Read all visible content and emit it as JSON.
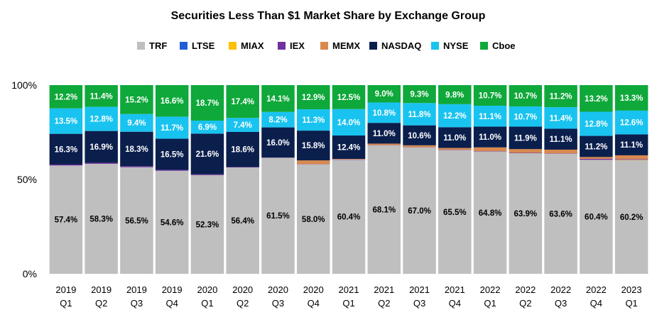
{
  "chart_data": {
    "type": "bar",
    "stacked": true,
    "title": "Securities Less Than $1 Market Share by Exchange Group",
    "xlabel": "",
    "ylabel": "",
    "ylim": [
      0,
      100
    ],
    "yticks": [
      "0%",
      "50%",
      "100%"
    ],
    "legend_position": "top",
    "categories": [
      [
        "2019",
        "Q1"
      ],
      [
        "2019",
        "Q2"
      ],
      [
        "2019",
        "Q3"
      ],
      [
        "2019",
        "Q4"
      ],
      [
        "2020",
        "Q1"
      ],
      [
        "2020",
        "Q2"
      ],
      [
        "2020",
        "Q3"
      ],
      [
        "2020",
        "Q4"
      ],
      [
        "2021",
        "Q1"
      ],
      [
        "2021",
        "Q2"
      ],
      [
        "2021",
        "Q3"
      ],
      [
        "2021",
        "Q4"
      ],
      [
        "2022",
        "Q1"
      ],
      [
        "2022",
        "Q2"
      ],
      [
        "2022",
        "Q3"
      ],
      [
        "2022",
        "Q4"
      ],
      [
        "2023",
        "Q1"
      ]
    ],
    "series": [
      {
        "name": "TRF",
        "color": "#bfbfbf",
        "show_labels": true,
        "label_color": "#000000",
        "values": [
          57.4,
          58.3,
          56.5,
          54.6,
          52.3,
          56.4,
          61.5,
          58.0,
          60.4,
          68.1,
          67.0,
          65.5,
          64.8,
          63.9,
          63.6,
          60.4,
          60.2
        ],
        "labels": [
          "57.4%",
          "58.3%",
          "56.5%",
          "54.6%",
          "52.3%",
          "56.4%",
          "61.5%",
          "58.0%",
          "60.4%",
          "68.1%",
          "67.0%",
          "65.5%",
          "64.8%",
          "63.9%",
          "63.6%",
          "60.4%",
          "60.2%"
        ]
      },
      {
        "name": "LTSE",
        "color": "#1f5fd6",
        "show_labels": false,
        "values": [
          0,
          0,
          0,
          0,
          0,
          0,
          0,
          0,
          0,
          0,
          0,
          0,
          0,
          0,
          0,
          0,
          0
        ]
      },
      {
        "name": "MIAX",
        "color": "#ffc000",
        "show_labels": false,
        "values": [
          0,
          0,
          0,
          0,
          0,
          0,
          0,
          0,
          0,
          0,
          0,
          0,
          0,
          0,
          0,
          0,
          0.2
        ]
      },
      {
        "name": "IEX",
        "color": "#7030a0",
        "show_labels": false,
        "values": [
          0.5,
          0.5,
          0.5,
          0.5,
          0.4,
          0.2,
          0.1,
          0.1,
          0.2,
          0.1,
          0.1,
          0.2,
          0.2,
          0.2,
          0.2,
          0.5,
          0.4
        ]
      },
      {
        "name": "MEMX",
        "color": "#d8894e",
        "show_labels": false,
        "values": [
          0,
          0,
          0,
          0,
          0,
          0,
          0,
          2.0,
          0.3,
          0.8,
          1.0,
          1.0,
          2.0,
          2.0,
          2.0,
          1.0,
          2.0
        ]
      },
      {
        "name": "NASDAQ",
        "color": "#0b1f4d",
        "show_labels": true,
        "label_color": "#ffffff",
        "values": [
          16.3,
          16.9,
          18.3,
          16.5,
          21.6,
          18.6,
          16.0,
          15.8,
          12.4,
          11.0,
          10.6,
          11.0,
          11.0,
          11.9,
          11.1,
          11.2,
          11.1
        ],
        "labels": [
          "16.3%",
          "16.9%",
          "18.3%",
          "16.5%",
          "21.6%",
          "18.6%",
          "16.0%",
          "15.8%",
          "12.4%",
          "11.0%",
          "10.6%",
          "11.0%",
          "11.0%",
          "11.9%",
          "11.1%",
          "11.2%",
          "11.1%"
        ]
      },
      {
        "name": "NYSE",
        "color": "#19c3f0",
        "show_labels": true,
        "label_color": "#ffffff",
        "values": [
          13.5,
          12.8,
          9.4,
          11.7,
          6.9,
          7.4,
          8.2,
          11.3,
          14.0,
          10.8,
          11.8,
          12.2,
          11.1,
          10.7,
          11.4,
          12.8,
          12.6
        ],
        "labels": [
          "13.5%",
          "12.8%",
          "9.4%",
          "11.7%",
          "6.9%",
          "7.4%",
          "8.2%",
          "11.3%",
          "14.0%",
          "10.8%",
          "11.8%",
          "12.2%",
          "11.1%",
          "10.7%",
          "11.4%",
          "12.8%",
          "12.6%"
        ]
      },
      {
        "name": "Cboe",
        "color": "#0fa83a",
        "show_labels": true,
        "label_color": "#ffffff",
        "values": [
          12.2,
          11.4,
          15.2,
          16.6,
          18.7,
          17.4,
          14.1,
          12.9,
          12.5,
          9.0,
          9.3,
          9.8,
          10.7,
          10.7,
          11.2,
          13.2,
          13.3
        ],
        "labels": [
          "12.2%",
          "11.4%",
          "15.2%",
          "16.6%",
          "18.7%",
          "17.4%",
          "14.1%",
          "12.9%",
          "12.5%",
          "9.0%",
          "9.3%",
          "9.8%",
          "10.7%",
          "10.7%",
          "11.2%",
          "13.2%",
          "13.3%"
        ]
      }
    ]
  }
}
